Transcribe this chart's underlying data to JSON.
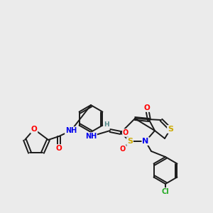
{
  "bg_color": "#ebebeb",
  "bond_color": "#1a1a1a",
  "atom_colors": {
    "O": "#ff0000",
    "N": "#0000ee",
    "S": "#ccaa00",
    "Cl": "#22aa22",
    "H": "#558888",
    "C": "#1a1a1a"
  },
  "figsize": [
    3.0,
    3.0
  ],
  "dpi": 100
}
